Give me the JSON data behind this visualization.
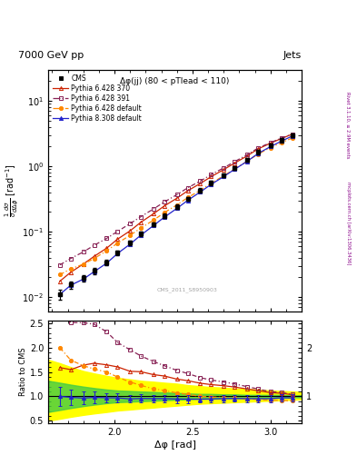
{
  "title_top": "7000 GeV pp",
  "title_right": "Jets",
  "title_panel": "Δφ(jj) (80 < pTlead < 110)",
  "watermark": "CMS_2011_S8950903",
  "right_label": "Rivet 3.1.10, ≥ 2.9M events",
  "right_label2": "mcplots.cern.ch [arXiv:1306.3436]",
  "xlabel": "Δφ [rad]",
  "ylabel_ratio": "Ratio to CMS",
  "xlim": [
    1.575,
    3.2
  ],
  "ylim_main": [
    0.006,
    30
  ],
  "ylim_ratio": [
    0.45,
    2.55
  ],
  "cms_x": [
    1.65,
    1.72,
    1.8,
    1.87,
    1.95,
    2.02,
    2.1,
    2.17,
    2.25,
    2.32,
    2.4,
    2.47,
    2.55,
    2.62,
    2.7,
    2.77,
    2.85,
    2.92,
    3.0,
    3.07,
    3.14
  ],
  "cms_y": [
    0.011,
    0.0155,
    0.0195,
    0.025,
    0.034,
    0.048,
    0.068,
    0.093,
    0.13,
    0.175,
    0.24,
    0.32,
    0.43,
    0.56,
    0.73,
    0.94,
    1.25,
    1.65,
    2.1,
    2.5,
    3.0
  ],
  "cms_yerr": [
    0.002,
    0.002,
    0.002,
    0.003,
    0.003,
    0.004,
    0.005,
    0.007,
    0.01,
    0.013,
    0.018,
    0.023,
    0.03,
    0.04,
    0.05,
    0.065,
    0.085,
    0.11,
    0.14,
    0.17,
    0.2
  ],
  "p6428_370_x": [
    1.65,
    1.72,
    1.8,
    1.87,
    1.95,
    2.02,
    2.1,
    2.17,
    2.25,
    2.32,
    2.4,
    2.47,
    2.55,
    2.62,
    2.7,
    2.77,
    2.85,
    2.92,
    3.0,
    3.07,
    3.14
  ],
  "p6428_370_y": [
    0.0175,
    0.024,
    0.032,
    0.042,
    0.056,
    0.077,
    0.103,
    0.14,
    0.188,
    0.248,
    0.325,
    0.423,
    0.546,
    0.695,
    0.89,
    1.12,
    1.44,
    1.84,
    2.26,
    2.66,
    3.1
  ],
  "p6428_391_x": [
    1.65,
    1.72,
    1.8,
    1.87,
    1.95,
    2.02,
    2.1,
    2.17,
    2.25,
    2.32,
    2.4,
    2.47,
    2.55,
    2.62,
    2.7,
    2.77,
    2.85,
    2.92,
    3.0,
    3.07,
    3.14
  ],
  "p6428_391_y": [
    0.031,
    0.039,
    0.049,
    0.062,
    0.079,
    0.101,
    0.133,
    0.17,
    0.223,
    0.285,
    0.368,
    0.47,
    0.595,
    0.748,
    0.945,
    1.18,
    1.5,
    1.9,
    2.3,
    2.7,
    3.12
  ],
  "p6428_def_x": [
    1.65,
    1.72,
    1.8,
    1.87,
    1.95,
    2.02,
    2.1,
    2.17,
    2.25,
    2.32,
    2.4,
    2.47,
    2.55,
    2.62,
    2.7,
    2.77,
    2.85,
    2.92,
    3.0,
    3.07,
    3.14
  ],
  "p6428_def_y": [
    0.022,
    0.027,
    0.0318,
    0.039,
    0.051,
    0.067,
    0.088,
    0.114,
    0.15,
    0.196,
    0.257,
    0.333,
    0.43,
    0.553,
    0.715,
    0.912,
    1.19,
    1.54,
    1.93,
    2.3,
    2.72
  ],
  "p8308_def_x": [
    1.65,
    1.72,
    1.8,
    1.87,
    1.95,
    2.02,
    2.1,
    2.17,
    2.25,
    2.32,
    2.4,
    2.47,
    2.55,
    2.62,
    2.7,
    2.77,
    2.85,
    2.92,
    3.0,
    3.07,
    3.14
  ],
  "p8308_def_y": [
    0.011,
    0.0152,
    0.0188,
    0.0245,
    0.033,
    0.0465,
    0.0645,
    0.089,
    0.124,
    0.167,
    0.227,
    0.302,
    0.405,
    0.53,
    0.696,
    0.9,
    1.19,
    1.57,
    2.0,
    2.43,
    2.9
  ],
  "color_cms": "#000000",
  "color_370": "#cc2200",
  "color_391": "#882255",
  "color_def6": "#ff8800",
  "color_def8": "#2222cc",
  "green_band_x": [
    1.575,
    1.65,
    1.72,
    1.8,
    1.87,
    1.95,
    2.02,
    2.1,
    2.17,
    2.25,
    2.32,
    2.4,
    2.47,
    2.55,
    2.62,
    2.7,
    2.77,
    2.85,
    2.92,
    3.0,
    3.07,
    3.14,
    3.2
  ],
  "green_band_lo": [
    0.68,
    0.72,
    0.76,
    0.8,
    0.83,
    0.86,
    0.88,
    0.89,
    0.9,
    0.91,
    0.92,
    0.93,
    0.94,
    0.95,
    0.95,
    0.96,
    0.96,
    0.97,
    0.97,
    0.97,
    0.97,
    0.98,
    0.98
  ],
  "green_band_hi": [
    1.32,
    1.28,
    1.24,
    1.2,
    1.17,
    1.14,
    1.12,
    1.11,
    1.1,
    1.09,
    1.08,
    1.07,
    1.06,
    1.05,
    1.05,
    1.04,
    1.04,
    1.03,
    1.03,
    1.03,
    1.03,
    1.02,
    1.02
  ],
  "yellow_band_lo": [
    0.5,
    0.54,
    0.58,
    0.62,
    0.65,
    0.68,
    0.71,
    0.73,
    0.75,
    0.77,
    0.79,
    0.81,
    0.83,
    0.85,
    0.86,
    0.87,
    0.88,
    0.89,
    0.9,
    0.91,
    0.92,
    0.93,
    0.94
  ],
  "yellow_band_hi": [
    1.75,
    1.68,
    1.6,
    1.52,
    1.47,
    1.42,
    1.38,
    1.35,
    1.32,
    1.3,
    1.28,
    1.26,
    1.23,
    1.21,
    1.19,
    1.18,
    1.16,
    1.15,
    1.14,
    1.12,
    1.11,
    1.1,
    1.09
  ],
  "p8308_ratio_yerr": [
    0.2,
    0.16,
    0.13,
    0.12,
    0.1,
    0.09,
    0.08,
    0.08,
    0.08,
    0.08,
    0.08,
    0.08,
    0.07,
    0.07,
    0.07,
    0.07,
    0.07,
    0.07,
    0.07,
    0.07,
    0.07
  ]
}
